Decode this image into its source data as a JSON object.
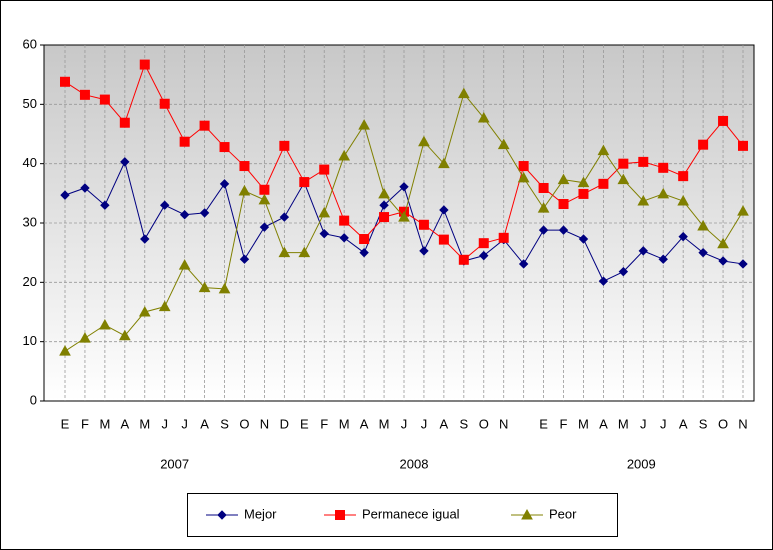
{
  "chart_data": {
    "type": "line",
    "categories": [
      "E",
      "F",
      "M",
      "A",
      "M",
      "J",
      "J",
      "A",
      "S",
      "O",
      "N",
      "D",
      "E",
      "F",
      "M",
      "A",
      "M",
      "J",
      "J",
      "A",
      "S",
      "O",
      "N",
      null,
      "E",
      "F",
      "M",
      "A",
      "M",
      "J",
      "J",
      "A",
      "S",
      "O",
      "N"
    ],
    "x_group_labels": [
      "2007",
      "2008",
      "2009"
    ],
    "ylim": [
      0,
      60
    ],
    "yticks": [
      0,
      10,
      20,
      30,
      40,
      50,
      60
    ],
    "grid": true,
    "legend": "bottom",
    "series": [
      {
        "name": "Mejor",
        "color": "#000080",
        "marker": "diamond",
        "values": [
          34.7,
          35.9,
          33.0,
          40.3,
          27.3,
          33.0,
          31.4,
          31.7,
          36.6,
          23.9,
          29.3,
          31.0,
          36.8,
          28.2,
          27.5,
          25.0,
          33.0,
          36.1,
          25.3,
          32.2,
          23.6,
          24.5,
          27.2,
          23.1,
          28.8,
          28.8,
          27.3,
          20.2,
          21.8,
          25.3,
          23.9,
          27.7,
          25.0,
          23.6,
          23.1
        ]
      },
      {
        "name": "Permanece igual",
        "color": "#ff0000",
        "marker": "square",
        "values": [
          53.8,
          51.6,
          50.8,
          46.9,
          56.7,
          50.1,
          43.7,
          46.4,
          42.8,
          39.6,
          35.6,
          43.0,
          36.9,
          39.0,
          30.4,
          27.3,
          31.0,
          31.9,
          29.7,
          27.2,
          23.8,
          26.6,
          27.5,
          39.6,
          35.9,
          33.2,
          34.9,
          36.6,
          40.0,
          40.3,
          39.3,
          37.9,
          43.2,
          47.2,
          43.0
        ]
      },
      {
        "name": "Peor",
        "color": "#808000",
        "marker": "triangle",
        "values": [
          8.4,
          10.6,
          12.8,
          11.0,
          15.0,
          15.9,
          22.9,
          19.1,
          18.9,
          35.4,
          33.9,
          25.0,
          25.0,
          31.7,
          41.3,
          46.5,
          34.9,
          31.0,
          43.7,
          40.0,
          51.8,
          47.7,
          43.2,
          37.6,
          32.5,
          37.3,
          36.8,
          42.2,
          37.3,
          33.7,
          34.9,
          33.7,
          29.5,
          26.5,
          32.0
        ]
      }
    ]
  }
}
